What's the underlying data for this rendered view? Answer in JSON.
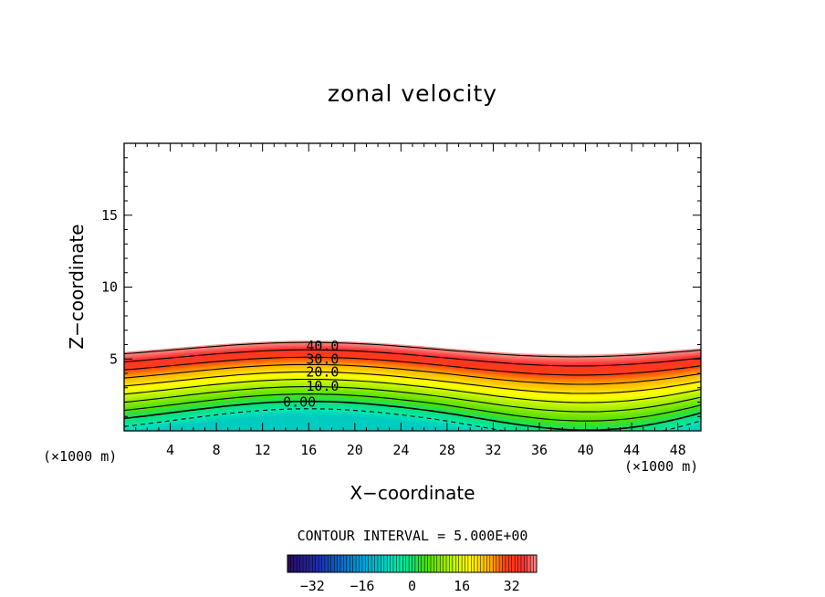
{
  "chart_data": {
    "type": "contour",
    "title": "zonal velocity",
    "xlabel": "X−coordinate",
    "ylabel": "Z−coordinate",
    "x_unit_left": "(×1000 m)",
    "x_unit_right": "(×1000 m)",
    "xlim": [
      0,
      50
    ],
    "ylim": [
      0,
      20
    ],
    "x_ticks": [
      4,
      8,
      12,
      16,
      20,
      24,
      28,
      32,
      36,
      40,
      44,
      48
    ],
    "y_ticks": [
      5,
      10,
      15
    ],
    "contour_interval_text": "CONTOUR INTERVAL = 5.000E+00",
    "contour_values": [
      -5,
      0,
      5,
      10,
      15,
      20,
      25,
      30,
      35,
      40
    ],
    "contour_labels": [
      {
        "text": "40.0",
        "x": 17.2,
        "z": 5.9
      },
      {
        "text": "30.0",
        "x": 17.2,
        "z": 5.0
      },
      {
        "text": "20.0",
        "x": 17.2,
        "z": 4.1
      },
      {
        "text": "10.0",
        "x": 17.2,
        "z": 3.1
      },
      {
        "text": "0.00",
        "x": 15.2,
        "z": 2.0
      }
    ],
    "colorbar": {
      "min": -40,
      "max": 40,
      "ticks": [
        -32,
        -16,
        0,
        16,
        32
      ]
    },
    "colors": {
      "neg": "#1a0b52",
      "cyan": "#00e5a8",
      "green": "#52e000",
      "yellow": "#ffff00",
      "orange": "#ff8a00",
      "red": "#ff2a1a",
      "pink": "#f58a86"
    }
  }
}
